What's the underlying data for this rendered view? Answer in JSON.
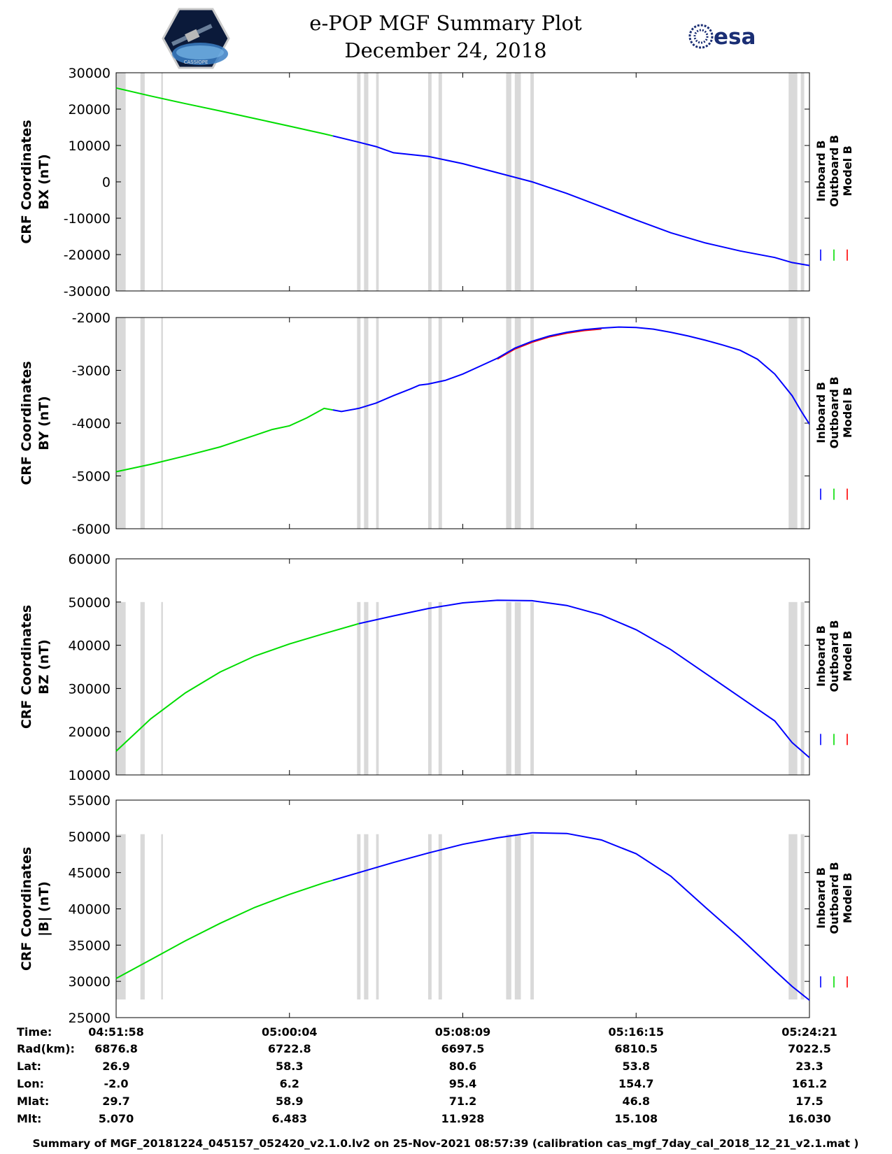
{
  "header": {
    "title": "e-POP MGF Summary Plot",
    "date": "December 24, 2018",
    "logo_left": "CASSIOPE",
    "logo_right": "esa"
  },
  "colors": {
    "inboard": "#0000ff",
    "outboard": "#00dd00",
    "model": "#ff0000",
    "gap": "#d9d9d9"
  },
  "legend": {
    "inboard": "Inboard B",
    "outboard": "Outboard B",
    "model": "Model B"
  },
  "gap_ranges": [
    [
      0.0,
      0.2
    ],
    [
      0.2,
      0.55
    ],
    [
      1.4,
      1.65
    ],
    [
      2.6,
      2.7
    ],
    [
      13.9,
      14.1
    ],
    [
      14.3,
      14.55
    ],
    [
      15.0,
      15.15
    ],
    [
      18.0,
      18.2
    ],
    [
      18.6,
      18.8
    ],
    [
      22.5,
      22.8
    ],
    [
      23.0,
      23.35
    ],
    [
      23.9,
      24.1
    ],
    [
      38.8,
      39.3
    ],
    [
      39.5,
      39.7
    ]
  ],
  "time_axis": {
    "start": "04:51:58",
    "span_min": 40.0
  },
  "chart_data": [
    {
      "id": "bx",
      "type": "line",
      "ylabel": [
        "CRF Coordinates",
        "BX (nT)"
      ],
      "ylim": [
        -30000,
        30000
      ],
      "yticks": [
        30000,
        20000,
        10000,
        0,
        -10000,
        -20000,
        -30000
      ],
      "gap_band": [
        -30000,
        30000
      ],
      "green_until": 12.5,
      "x": [
        0,
        2,
        4,
        6,
        8,
        10,
        12,
        14,
        15,
        16,
        18,
        20,
        22,
        24,
        26,
        28,
        30,
        32,
        34,
        36,
        38,
        39,
        40
      ],
      "y": [
        25800,
        23600,
        21500,
        19500,
        17400,
        15300,
        13200,
        10900,
        9700,
        8000,
        7000,
        5000,
        2500,
        0,
        -3200,
        -6800,
        -10500,
        -14000,
        -16800,
        -19000,
        -20800,
        -22200,
        -23000
      ],
      "series": [
        "Inboard B",
        "Outboard B",
        "Model B"
      ]
    },
    {
      "id": "by",
      "type": "line",
      "ylabel": [
        "CRF Coordinates",
        "BY (nT)"
      ],
      "ylim": [
        -6000,
        -2000
      ],
      "yticks": [
        -2000,
        -3000,
        -4000,
        -5000,
        -6000
      ],
      "gap_band": [
        -6000,
        -2000
      ],
      "green_until": 12.5,
      "x": [
        0,
        2,
        4,
        6,
        7,
        8,
        9,
        10,
        11,
        12,
        13,
        14,
        15,
        16,
        17,
        17.5,
        18,
        19,
        20,
        21,
        22,
        23,
        24,
        25,
        26,
        27,
        28,
        29,
        30,
        31,
        32,
        33,
        34,
        35,
        36,
        37,
        38,
        39,
        39.5,
        40
      ],
      "y": [
        -4920,
        -4780,
        -4620,
        -4450,
        -4340,
        -4230,
        -4120,
        -4050,
        -3900,
        -3720,
        -3780,
        -3720,
        -3620,
        -3480,
        -3350,
        -3280,
        -3260,
        -3190,
        -3070,
        -2920,
        -2770,
        -2580,
        -2450,
        -2350,
        -2280,
        -2230,
        -2200,
        -2180,
        -2190,
        -2220,
        -2280,
        -2350,
        -2430,
        -2520,
        -2620,
        -2790,
        -3070,
        -3480,
        -3760,
        -4020
      ],
      "series": [
        "Inboard B",
        "Outboard B",
        "Model B"
      ]
    },
    {
      "id": "bz",
      "type": "line",
      "ylabel": [
        "CRF Coordinates",
        "BZ (nT)"
      ],
      "ylim": [
        10000,
        60000
      ],
      "yticks": [
        60000,
        50000,
        40000,
        30000,
        20000,
        10000
      ],
      "gap_band": [
        10000,
        50000
      ],
      "green_until": 14.0,
      "x": [
        0,
        2,
        4,
        6,
        8,
        10,
        12,
        14,
        16,
        18,
        20,
        22,
        24,
        26,
        28,
        30,
        32,
        34,
        36,
        38,
        39,
        40
      ],
      "y": [
        15500,
        23000,
        29000,
        33800,
        37500,
        40300,
        42700,
        45000,
        46800,
        48500,
        49800,
        50400,
        50300,
        49200,
        47000,
        43600,
        39000,
        33500,
        28000,
        22500,
        17500,
        14000
      ],
      "series": [
        "Inboard B",
        "Outboard B",
        "Model B"
      ]
    },
    {
      "id": "btot",
      "type": "line",
      "ylabel": [
        "CRF Coordinates",
        "|B| (nT)"
      ],
      "ylim": [
        25000,
        55000
      ],
      "yticks": [
        55000,
        50000,
        45000,
        40000,
        35000,
        30000,
        25000
      ],
      "gap_band": [
        27500,
        50300
      ],
      "green_until": 12.5,
      "x": [
        0,
        2,
        4,
        6,
        8,
        10,
        12,
        14,
        16,
        18,
        20,
        22,
        24,
        26,
        28,
        30,
        32,
        34,
        36,
        38,
        39,
        40
      ],
      "y": [
        30400,
        33000,
        35600,
        38000,
        40200,
        42000,
        43600,
        45000,
        46400,
        47700,
        48900,
        49800,
        50500,
        50400,
        49500,
        47600,
        44500,
        40200,
        36000,
        31500,
        29300,
        27400
      ],
      "series": [
        "Inboard B",
        "Outboard B",
        "Model B"
      ]
    }
  ],
  "ephemeris": {
    "row_labels": [
      "Time:",
      "Rad(km):",
      "Lat:",
      "Lon:",
      "Mlat:",
      "Mlt:"
    ],
    "columns": [
      [
        "04:51:58",
        "6876.8",
        "26.9",
        "-2.0",
        "29.7",
        "5.070"
      ],
      [
        "05:00:04",
        "6722.8",
        "58.3",
        "6.2",
        "58.9",
        "6.483"
      ],
      [
        "05:08:09",
        "6697.5",
        "80.6",
        "95.4",
        "71.2",
        "11.928"
      ],
      [
        "05:16:15",
        "6810.5",
        "53.8",
        "154.7",
        "46.8",
        "15.108"
      ],
      [
        "05:24:21",
        "7022.5",
        "23.3",
        "161.2",
        "17.5",
        "16.030"
      ]
    ]
  },
  "footer": "Summary of MGF_20181224_045157_052420_v2.1.0.lv2 on 25-Nov-2021 08:57:39 (calibration cas_mgf_7day_cal_2018_12_21_v2.1.mat )"
}
